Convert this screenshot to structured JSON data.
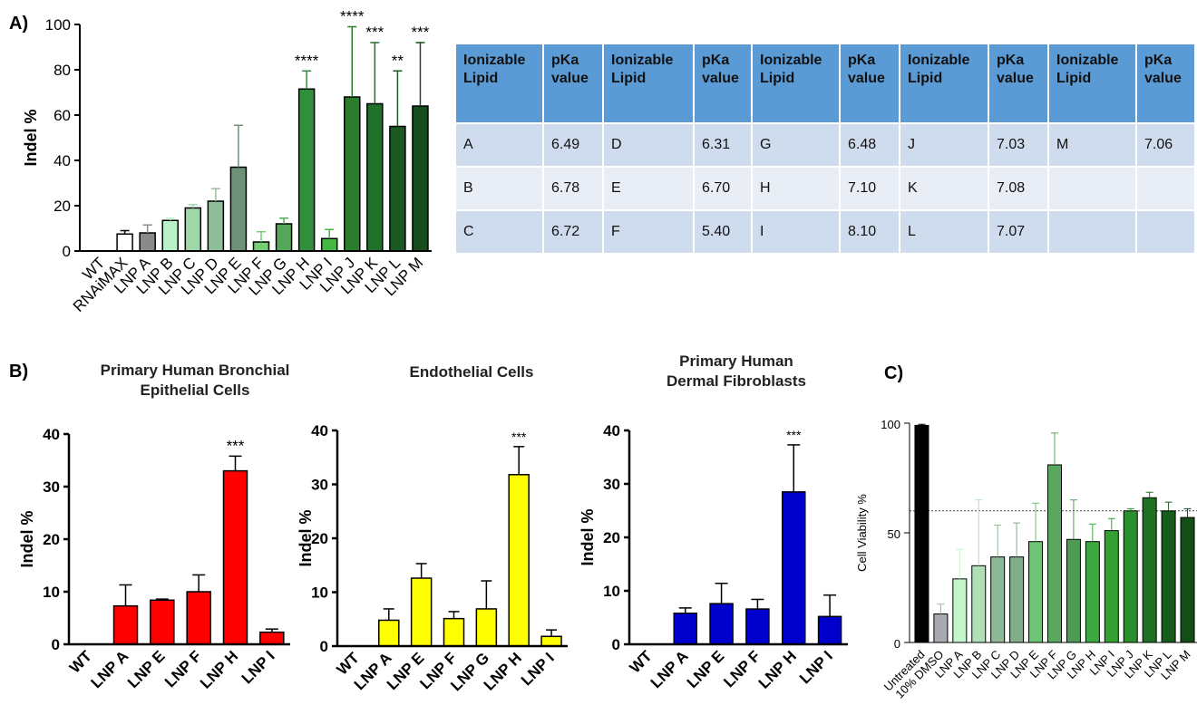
{
  "panel_labels": {
    "a": "A)",
    "b": "B)",
    "c": "C)"
  },
  "table": {
    "headers": [
      "Ionizable Lipid",
      "pKa value",
      "Ionizable Lipid",
      "pKa value",
      "Ionizable Lipid",
      "pKa value",
      "Ionizable Lipid",
      "pKa value",
      "Ionizable Lipid",
      "pKa value"
    ],
    "rows": [
      [
        "A",
        "6.49",
        "D",
        "6.31",
        "G",
        "6.48",
        "J",
        "7.03",
        "M",
        "7.06"
      ],
      [
        "B",
        "6.78",
        "E",
        "6.70",
        "H",
        "7.10",
        "K",
        "7.08",
        "",
        ""
      ],
      [
        "C",
        "6.72",
        "F",
        "5.40",
        "I",
        "8.10",
        "L",
        "7.07",
        "",
        ""
      ]
    ]
  },
  "colors": {
    "accent_table_header": "#5b9bd5",
    "red": "#ff0000",
    "yellow": "#ffff00",
    "blue": "#0000cc"
  },
  "chart_data": [
    {
      "type": "bar",
      "panel": "A)",
      "title": "",
      "ylabel": "Indel %",
      "ylim": [
        0,
        100
      ],
      "yticks": [
        "0",
        "20",
        "40",
        "60",
        "80",
        "100"
      ],
      "categories": [
        "WT",
        "RNAiMAX",
        "LNP A",
        "LNP B",
        "LNP C",
        "LNP D",
        "LNP E",
        "LNP F",
        "LNP G",
        "LNP H",
        "LNP I",
        "LNP J",
        "LNP K",
        "LNP L",
        "LNP M"
      ],
      "values": [
        0,
        7.5,
        8,
        13.5,
        19,
        22,
        37,
        4,
        12,
        71.5,
        5.5,
        68,
        65,
        55,
        64
      ],
      "errors": [
        0,
        1.5,
        3.5,
        1,
        1.5,
        5.5,
        18.5,
        4.5,
        2.5,
        8,
        4,
        31,
        27,
        24.5,
        28
      ],
      "colors": [
        "#ffffff",
        "#ffffff",
        "#8a8a8a",
        "#b8f0c8",
        "#9ed8a8",
        "#8fbf98",
        "#6e9278",
        "#74cf72",
        "#55a85a",
        "#2f8f3a",
        "#42b843",
        "#2a7d2a",
        "#22712a",
        "#1a5a20",
        "#164d1a"
      ],
      "significance": [
        "",
        "",
        "",
        "",
        "",
        "",
        "",
        "",
        "",
        "****",
        "",
        "****",
        "***",
        "**",
        "***"
      ]
    },
    {
      "type": "bar",
      "panel": "B)",
      "title": "Primary Human Bronchial Epithelial Cells",
      "title_lines": [
        "Primary Human Bronchial",
        "Epithelial Cells"
      ],
      "ylabel": "Indel %",
      "ylim": [
        0,
        40
      ],
      "yticks": [
        "0",
        "10",
        "20",
        "30",
        "40"
      ],
      "categories": [
        "WT",
        "LNP A",
        "LNP E",
        "LNP F",
        "LNP H",
        "LNP I"
      ],
      "values": [
        0,
        7.3,
        8.4,
        10,
        33,
        2.3
      ],
      "errors": [
        0,
        4,
        0.2,
        3.2,
        2.8,
        0.6
      ],
      "color": "#ff0000",
      "significance": [
        "",
        "",
        "",
        "",
        "***",
        ""
      ]
    },
    {
      "type": "bar",
      "title": "Endothelial Cells",
      "title_lines": [
        "Endothelial Cells"
      ],
      "ylabel": "Indel %",
      "ylim": [
        0,
        40
      ],
      "yticks": [
        "0",
        "10",
        "20",
        "30",
        "40"
      ],
      "categories": [
        "WT",
        "LNP A",
        "LNP E",
        "LNP F",
        "LNP G",
        "LNP H",
        "LNP I"
      ],
      "values": [
        0,
        4.8,
        12.6,
        5.1,
        6.9,
        31.8,
        1.8
      ],
      "errors": [
        0,
        2.1,
        2.7,
        1.3,
        5.2,
        5.2,
        1.2
      ],
      "color": "#ffff00",
      "significance": [
        "",
        "",
        "",
        "",
        "",
        "***",
        ""
      ]
    },
    {
      "type": "bar",
      "title": "Primary Human Dermal Fibroblasts",
      "title_lines": [
        "Primary Human",
        "Dermal Fibroblasts"
      ],
      "ylabel": "Indel %",
      "ylim": [
        0,
        40
      ],
      "yticks": [
        "0",
        "10",
        "20",
        "30",
        "40"
      ],
      "categories": [
        "WT",
        "LNP A",
        "LNP E",
        "LNP F",
        "LNP H",
        "LNP I"
      ],
      "values": [
        0,
        5.8,
        7.6,
        6.6,
        28.5,
        5.2
      ],
      "errors": [
        0,
        1,
        3.8,
        1.8,
        8.8,
        4
      ],
      "color": "#0000cc",
      "significance": [
        "",
        "",
        "",
        "",
        "***",
        ""
      ]
    },
    {
      "type": "bar",
      "panel": "C)",
      "title": "",
      "ylabel": "Cell Viability %",
      "ylim": [
        0,
        100
      ],
      "yticks": [
        "0",
        "50",
        "100"
      ],
      "reference_line": 60,
      "categories": [
        "Untreated",
        "10% DMSO",
        "LNP A",
        "LNP B",
        "LNP C",
        "LNP D",
        "LNP E",
        "LNP F",
        "LNP G",
        "LNP H",
        "LNP I",
        "LNP J",
        "LNP K",
        "LNP L",
        "LNP M"
      ],
      "values": [
        99,
        13,
        29,
        35,
        39,
        39,
        46,
        81,
        47,
        46,
        51,
        60,
        66,
        60,
        57
      ],
      "errors": [
        0.5,
        4.5,
        13.5,
        30,
        14.5,
        15.5,
        17.5,
        14.5,
        18,
        8,
        5.5,
        1,
        2.5,
        4,
        4
      ],
      "colors": [
        "#000000",
        "#a9a9b2",
        "#c2f5c9",
        "#b0e0b6",
        "#8fb996",
        "#82ae8a",
        "#6cc474",
        "#5aa860",
        "#4f9a55",
        "#3caa40",
        "#33a032",
        "#2a8f2c",
        "#1f6f24",
        "#185c1c",
        "#144d17"
      ]
    }
  ]
}
